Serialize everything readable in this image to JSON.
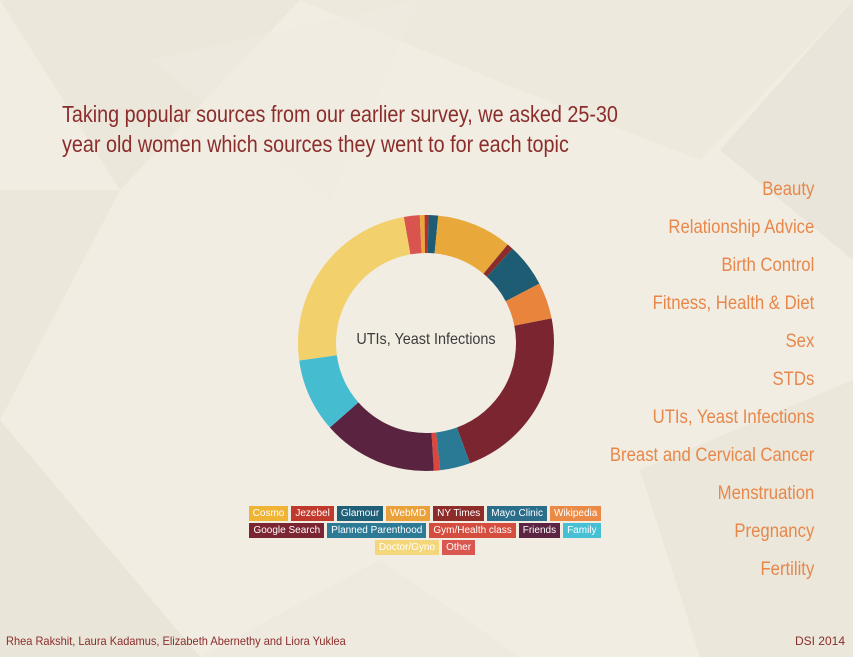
{
  "title": "Taking popular sources from our earlier survey, we asked 25-30 year old women which sources they went to for each topic",
  "topics": [
    "Beauty",
    "Relationship Advice",
    "Birth Control",
    "Fitness, Health & Diet",
    "Sex",
    "STDs",
    "UTIs, Yeast Infections",
    "Breast and Cervical Cancer",
    "Menstruation",
    "Pregnancy",
    "Fertility"
  ],
  "footer": {
    "authors": "Rhea Rakshit, Laura Kadamus, Elizabeth Abernethy and Liora Yuklea",
    "tag": "DSI 2014"
  },
  "legend_rows": [
    [
      0,
      1,
      2,
      3,
      4,
      5,
      6
    ],
    [
      7,
      8,
      9,
      10,
      11
    ],
    [
      12,
      13
    ]
  ],
  "chart_data": {
    "type": "pie",
    "subtype": "donut",
    "center_label": "UTIs, Yeast Infections",
    "categories": [
      "Cosmo",
      "Jezebel",
      "Glamour",
      "WebMD",
      "NY Times",
      "Mayo Clinic",
      "Wikipedia",
      "Google Search",
      "Planned Parenthood",
      "Gym/Health class",
      "Friends",
      "Family",
      "Doctor/Gyno",
      "Other"
    ],
    "colors": [
      "#e8a93a",
      "#b5302e",
      "#1e5c73",
      "#e8a93a",
      "#8b2d2b",
      "#1e5c73",
      "#e8843c",
      "#7a2530",
      "#2a7a95",
      "#d9473f",
      "#5a2440",
      "#45bcd0",
      "#f2d06b",
      "#d9534f"
    ],
    "legend_colors": [
      "#f0b434",
      "#c0392b",
      "#1f5f77",
      "#eba13a",
      "#8e2c2a",
      "#2a6e8c",
      "#eb8a45",
      "#7b2432",
      "#2c7a96",
      "#d54d3f",
      "#5b2443",
      "#47c0d4",
      "#f4d77a",
      "#d9574f"
    ],
    "slices": [
      {
        "name": "Other",
        "value": 2.0
      },
      {
        "name": "Cosmo",
        "value": 0.6
      },
      {
        "name": "Jezebel",
        "value": 0.5
      },
      {
        "name": "Glamour",
        "value": 1.2
      },
      {
        "name": "WebMD",
        "value": 9.5
      },
      {
        "name": "NY Times",
        "value": 0.8
      },
      {
        "name": "Mayo Clinic",
        "value": 5.5
      },
      {
        "name": "Wikipedia",
        "value": 4.6
      },
      {
        "name": "Google Search",
        "value": 22.5
      },
      {
        "name": "Planned Parenthood",
        "value": 3.8
      },
      {
        "name": "Gym/Health class",
        "value": 0.8
      },
      {
        "name": "Friends",
        "value": 14.5
      },
      {
        "name": "Family",
        "value": 9.3
      },
      {
        "name": "Doctor/Gyno",
        "value": 24.4
      }
    ]
  }
}
